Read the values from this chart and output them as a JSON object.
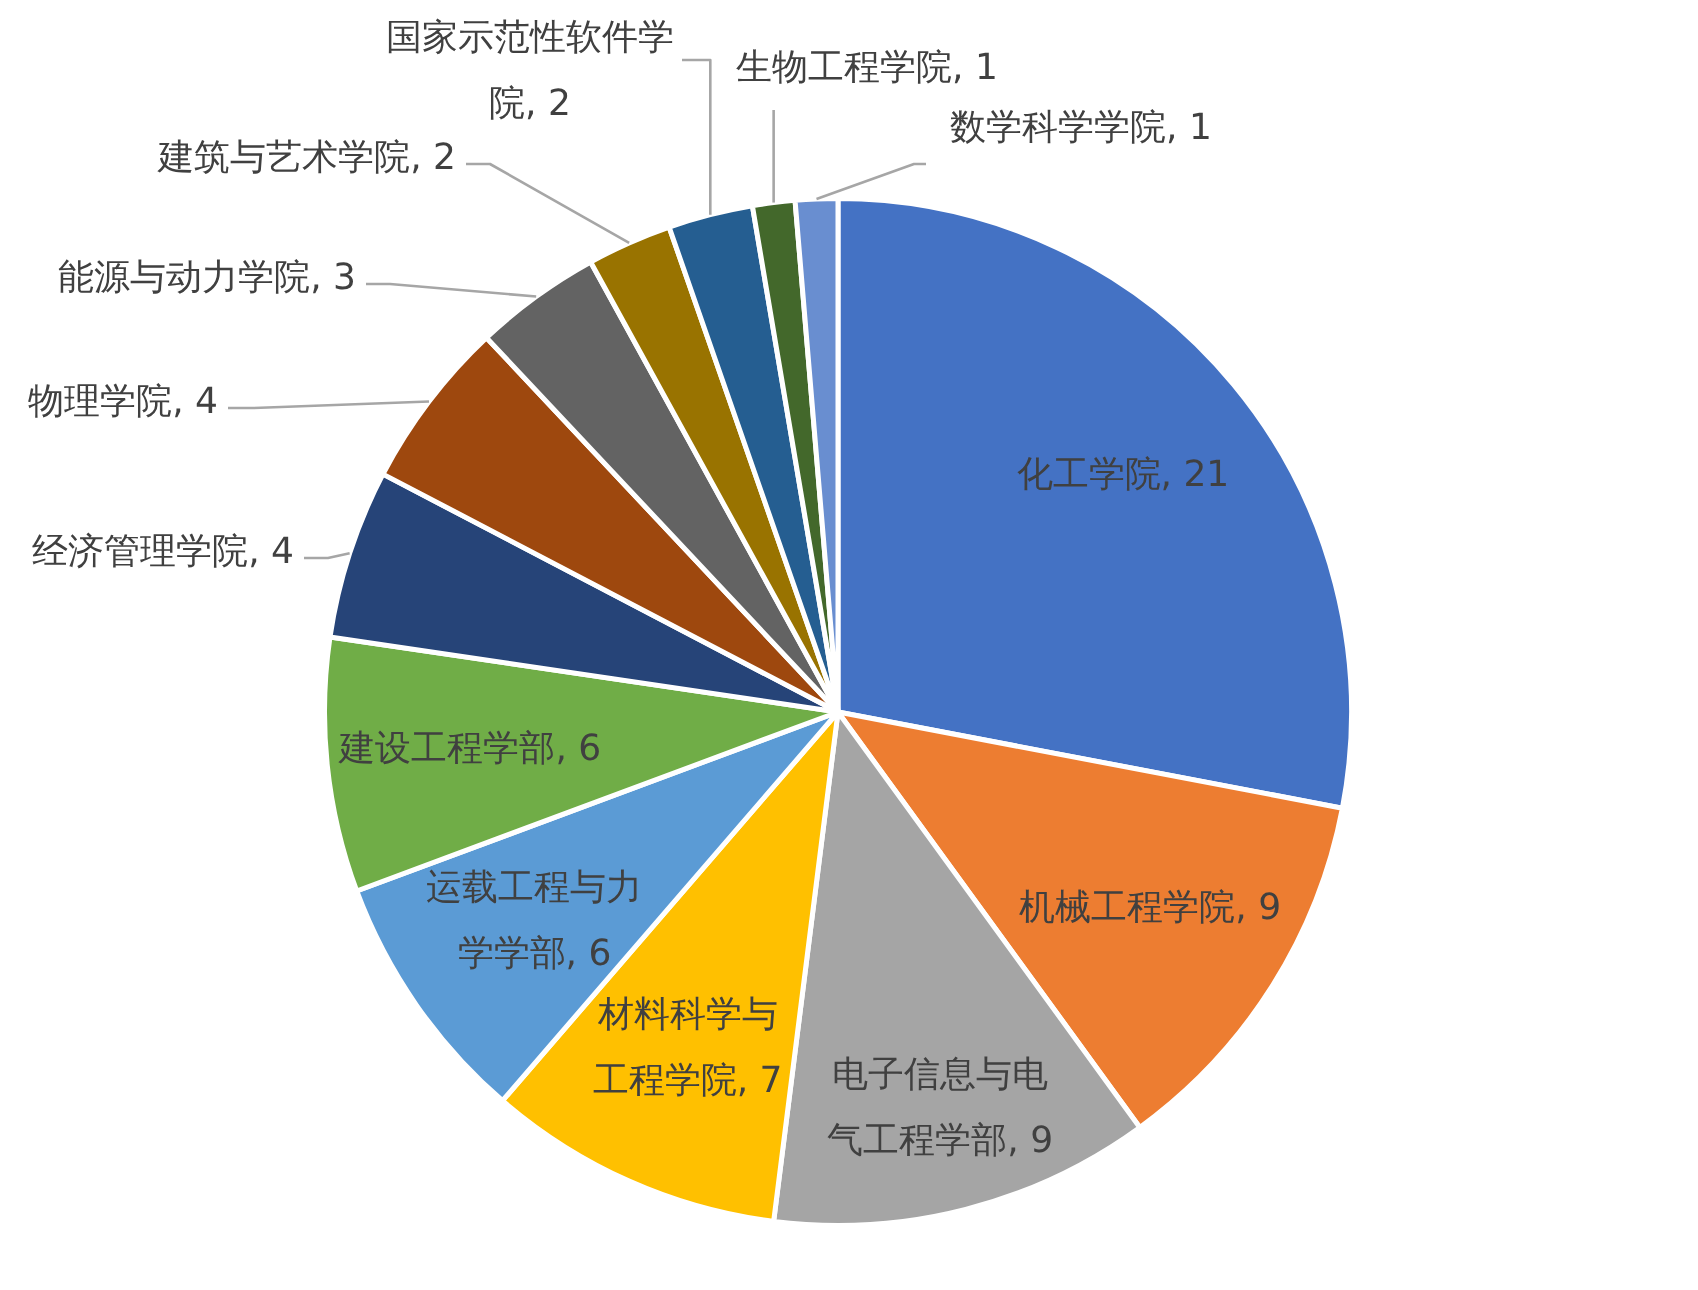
{
  "chart_data": {
    "type": "pie",
    "categories": [
      "化工学院",
      "机械工程学院",
      "电子信息与电气工程学部",
      "材料科学与工程学院",
      "运载工程与力学学部",
      "建设工程学部",
      "经济管理学院",
      "物理学院",
      "能源与动力学院",
      "建筑与艺术学院",
      "国家示范性软件学院",
      "生物工程学院",
      "数学科学学院"
    ],
    "values": [
      21,
      9,
      9,
      7,
      6,
      6,
      4,
      4,
      3,
      2,
      2,
      1,
      1
    ],
    "value_labels": [
      ", 21",
      ", 9",
      ", 9",
      ", 7",
      ", 6",
      ", 6",
      ", 4",
      ", 4",
      ", 3",
      ", 2",
      ", 2",
      ", 1",
      ", 1"
    ],
    "colors": [
      "#4472c4",
      "#ed7d31",
      "#a5a5a5",
      "#ffc000",
      "#5b9bd5",
      "#70ad47",
      "#264478",
      "#9e480e",
      "#636363",
      "#997300",
      "#255e91",
      "#43682b",
      "#698ed0"
    ],
    "legend": false
  }
}
